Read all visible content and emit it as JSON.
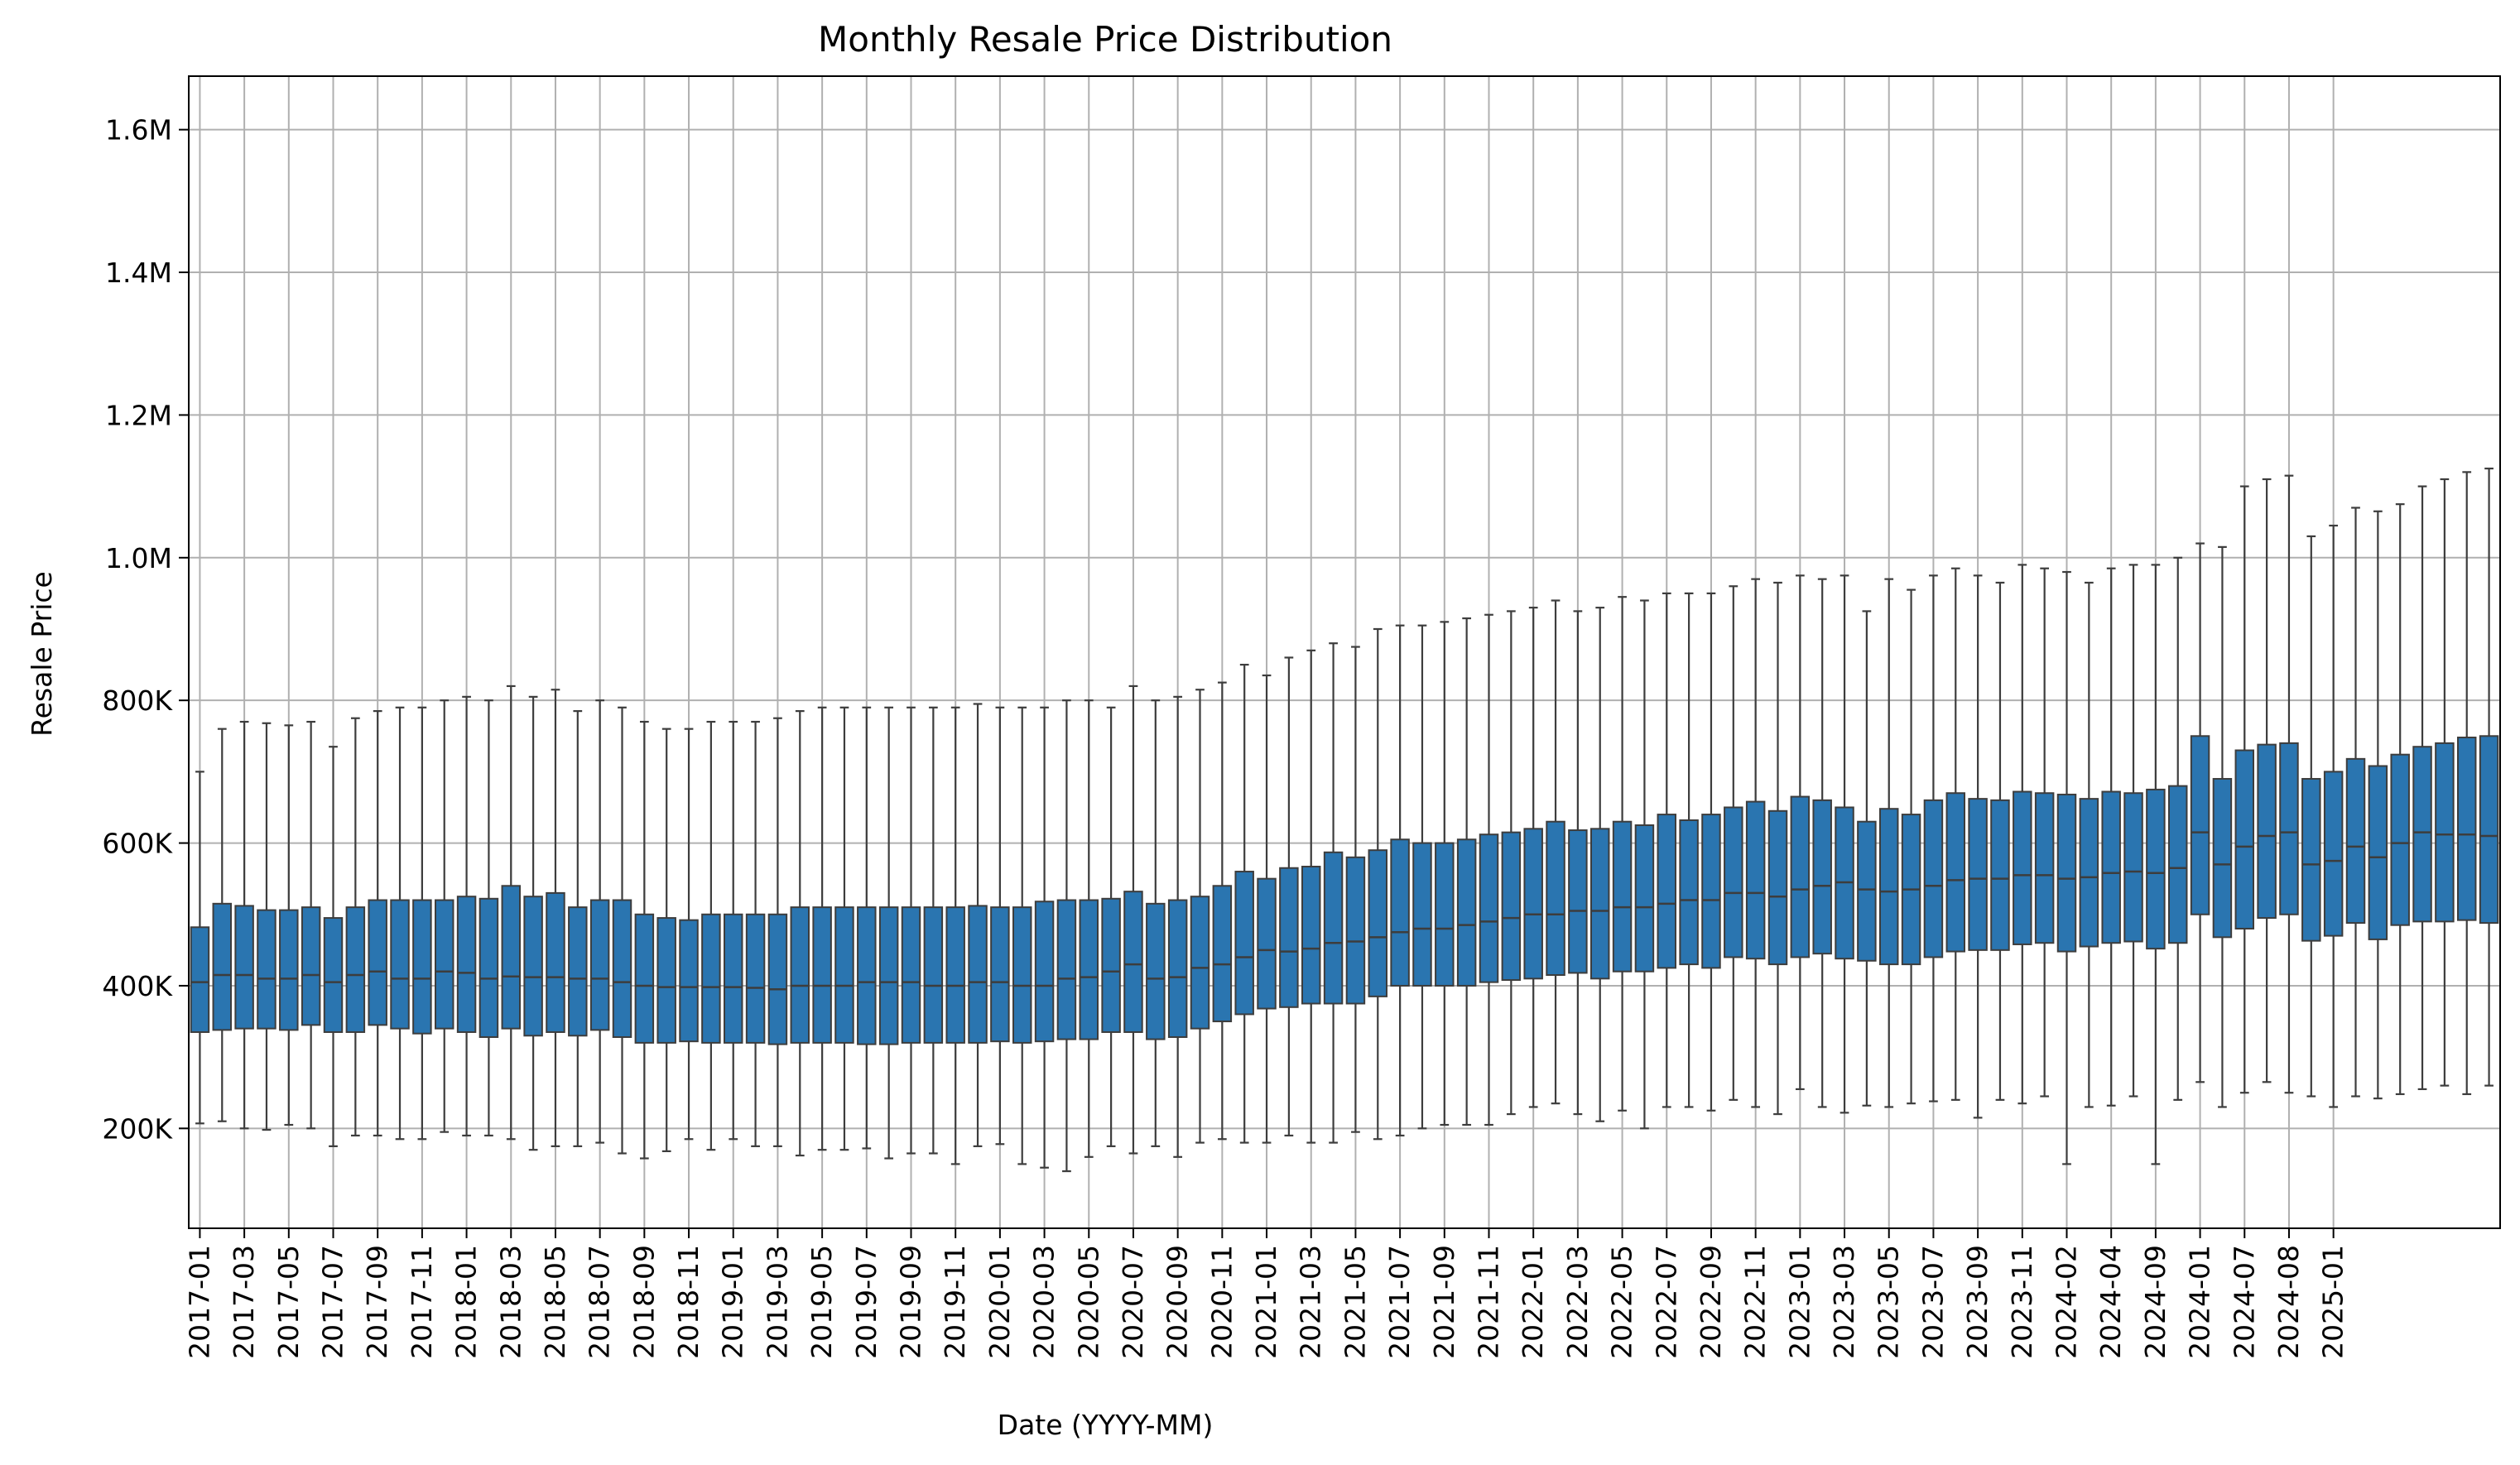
{
  "chart_data": {
    "type": "box",
    "title": "Monthly Resale Price Distribution",
    "xlabel": "Date (YYYY-MM)",
    "ylabel": "Resale Price",
    "ylim": [
      60000,
      1675000
    ],
    "yticks": [
      {
        "value": 200000,
        "label": "200K"
      },
      {
        "value": 400000,
        "label": "400K"
      },
      {
        "value": 600000,
        "label": "600K"
      },
      {
        "value": 800000,
        "label": "800K"
      },
      {
        "value": 1000000,
        "label": "1.0M"
      },
      {
        "value": 1200000,
        "label": "1.2M"
      },
      {
        "value": 1400000,
        "label": "1.4M"
      },
      {
        "value": 1600000,
        "label": "1.6M"
      }
    ],
    "xticks": [
      {
        "index": 0,
        "label": "2017-01"
      },
      {
        "index": 2,
        "label": "2017-03"
      },
      {
        "index": 4,
        "label": "2017-05"
      },
      {
        "index": 6,
        "label": "2017-07"
      },
      {
        "index": 8,
        "label": "2017-09"
      },
      {
        "index": 10,
        "label": "2017-11"
      },
      {
        "index": 12,
        "label": "2018-01"
      },
      {
        "index": 14,
        "label": "2018-03"
      },
      {
        "index": 16,
        "label": "2018-05"
      },
      {
        "index": 18,
        "label": "2018-07"
      },
      {
        "index": 20,
        "label": "2018-09"
      },
      {
        "index": 22,
        "label": "2018-11"
      },
      {
        "index": 24,
        "label": "2019-01"
      },
      {
        "index": 26,
        "label": "2019-03"
      },
      {
        "index": 28,
        "label": "2019-05"
      },
      {
        "index": 30,
        "label": "2019-07"
      },
      {
        "index": 32,
        "label": "2019-09"
      },
      {
        "index": 34,
        "label": "2019-11"
      },
      {
        "index": 36,
        "label": "2020-01"
      },
      {
        "index": 38,
        "label": "2020-03"
      },
      {
        "index": 40,
        "label": "2020-05"
      },
      {
        "index": 42,
        "label": "2020-07"
      },
      {
        "index": 44,
        "label": "2020-09"
      },
      {
        "index": 46,
        "label": "2020-11"
      },
      {
        "index": 48,
        "label": "2021-01"
      },
      {
        "index": 50,
        "label": "2021-03"
      },
      {
        "index": 52,
        "label": "2021-05"
      },
      {
        "index": 54,
        "label": "2021-07"
      },
      {
        "index": 56,
        "label": "2021-09"
      },
      {
        "index": 58,
        "label": "2021-11"
      },
      {
        "index": 60,
        "label": "2022-01"
      },
      {
        "index": 62,
        "label": "2022-03"
      },
      {
        "index": 64,
        "label": "2022-05"
      },
      {
        "index": 66,
        "label": "2022-07"
      },
      {
        "index": 68,
        "label": "2022-09"
      },
      {
        "index": 70,
        "label": "2022-11"
      },
      {
        "index": 72,
        "label": "2023-01"
      },
      {
        "index": 74,
        "label": "2023-03"
      },
      {
        "index": 76,
        "label": "2023-05"
      },
      {
        "index": 78,
        "label": "2023-07"
      },
      {
        "index": 80,
        "label": "2023-09"
      },
      {
        "index": 82,
        "label": "2023-11"
      },
      {
        "index": 84,
        "label": "2024-02"
      },
      {
        "index": 86,
        "label": "2024-04"
      },
      {
        "index": 88,
        "label": "2024-09"
      },
      {
        "index": 90,
        "label": "2024-01"
      },
      {
        "index": 92,
        "label": "2024-07"
      },
      {
        "index": 94,
        "label": "2024-08"
      },
      {
        "index": 96,
        "label": "2025-01"
      }
    ],
    "grid": true,
    "box_color": "#2a75b0",
    "line_color": "#3d3d3d",
    "box_width_fraction": 0.8,
    "series": [
      {
        "q1": 335000,
        "median": 405000,
        "q3": 482000,
        "wlo": 207000,
        "whi": 700000
      },
      {
        "q1": 338000,
        "median": 415000,
        "q3": 515000,
        "wlo": 210000,
        "whi": 760000
      },
      {
        "q1": 340000,
        "median": 415000,
        "q3": 512000,
        "wlo": 200000,
        "whi": 770000
      },
      {
        "q1": 340000,
        "median": 410000,
        "q3": 506000,
        "wlo": 198000,
        "whi": 768000
      },
      {
        "q1": 338000,
        "median": 410000,
        "q3": 506000,
        "wlo": 205000,
        "whi": 765000
      },
      {
        "q1": 345000,
        "median": 415000,
        "q3": 510000,
        "wlo": 200000,
        "whi": 770000
      },
      {
        "q1": 335000,
        "median": 405000,
        "q3": 495000,
        "wlo": 175000,
        "whi": 735000
      },
      {
        "q1": 335000,
        "median": 415000,
        "q3": 510000,
        "wlo": 190000,
        "whi": 775000
      },
      {
        "q1": 345000,
        "median": 420000,
        "q3": 520000,
        "wlo": 190000,
        "whi": 785000
      },
      {
        "q1": 340000,
        "median": 410000,
        "q3": 520000,
        "wlo": 185000,
        "whi": 790000
      },
      {
        "q1": 333000,
        "median": 410000,
        "q3": 520000,
        "wlo": 185000,
        "whi": 790000
      },
      {
        "q1": 340000,
        "median": 420000,
        "q3": 520000,
        "wlo": 195000,
        "whi": 800000
      },
      {
        "q1": 335000,
        "median": 418000,
        "q3": 525000,
        "wlo": 190000,
        "whi": 805000
      },
      {
        "q1": 328000,
        "median": 410000,
        "q3": 522000,
        "wlo": 190000,
        "whi": 800000
      },
      {
        "q1": 340000,
        "median": 413000,
        "q3": 540000,
        "wlo": 185000,
        "whi": 820000
      },
      {
        "q1": 330000,
        "median": 412000,
        "q3": 525000,
        "wlo": 170000,
        "whi": 805000
      },
      {
        "q1": 335000,
        "median": 412000,
        "q3": 530000,
        "wlo": 175000,
        "whi": 815000
      },
      {
        "q1": 330000,
        "median": 410000,
        "q3": 510000,
        "wlo": 175000,
        "whi": 785000
      },
      {
        "q1": 338000,
        "median": 410000,
        "q3": 520000,
        "wlo": 180000,
        "whi": 800000
      },
      {
        "q1": 328000,
        "median": 405000,
        "q3": 520000,
        "wlo": 165000,
        "whi": 790000
      },
      {
        "q1": 320000,
        "median": 400000,
        "q3": 500000,
        "wlo": 158000,
        "whi": 770000
      },
      {
        "q1": 320000,
        "median": 398000,
        "q3": 495000,
        "wlo": 168000,
        "whi": 760000
      },
      {
        "q1": 322000,
        "median": 398000,
        "q3": 492000,
        "wlo": 185000,
        "whi": 760000
      },
      {
        "q1": 320000,
        "median": 398000,
        "q3": 500000,
        "wlo": 170000,
        "whi": 770000
      },
      {
        "q1": 320000,
        "median": 398000,
        "q3": 500000,
        "wlo": 185000,
        "whi": 770000
      },
      {
        "q1": 320000,
        "median": 397000,
        "q3": 500000,
        "wlo": 175000,
        "whi": 770000
      },
      {
        "q1": 318000,
        "median": 395000,
        "q3": 500000,
        "wlo": 175000,
        "whi": 775000
      },
      {
        "q1": 320000,
        "median": 400000,
        "q3": 510000,
        "wlo": 162000,
        "whi": 785000
      },
      {
        "q1": 320000,
        "median": 400000,
        "q3": 510000,
        "wlo": 170000,
        "whi": 790000
      },
      {
        "q1": 320000,
        "median": 400000,
        "q3": 510000,
        "wlo": 170000,
        "whi": 790000
      },
      {
        "q1": 318000,
        "median": 405000,
        "q3": 510000,
        "wlo": 172000,
        "whi": 790000
      },
      {
        "q1": 318000,
        "median": 405000,
        "q3": 510000,
        "wlo": 158000,
        "whi": 790000
      },
      {
        "q1": 320000,
        "median": 405000,
        "q3": 510000,
        "wlo": 165000,
        "whi": 790000
      },
      {
        "q1": 320000,
        "median": 400000,
        "q3": 510000,
        "wlo": 165000,
        "whi": 790000
      },
      {
        "q1": 320000,
        "median": 400000,
        "q3": 510000,
        "wlo": 150000,
        "whi": 790000
      },
      {
        "q1": 320000,
        "median": 405000,
        "q3": 512000,
        "wlo": 175000,
        "whi": 795000
      },
      {
        "q1": 322000,
        "median": 405000,
        "q3": 510000,
        "wlo": 178000,
        "whi": 790000
      },
      {
        "q1": 320000,
        "median": 400000,
        "q3": 510000,
        "wlo": 150000,
        "whi": 790000
      },
      {
        "q1": 322000,
        "median": 400000,
        "q3": 518000,
        "wlo": 145000,
        "whi": 790000
      },
      {
        "q1": 325000,
        "median": 410000,
        "q3": 520000,
        "wlo": 140000,
        "whi": 800000
      },
      {
        "q1": 325000,
        "median": 412000,
        "q3": 520000,
        "wlo": 160000,
        "whi": 800000
      },
      {
        "q1": 335000,
        "median": 420000,
        "q3": 522000,
        "wlo": 175000,
        "whi": 790000
      },
      {
        "q1": 335000,
        "median": 430000,
        "q3": 532000,
        "wlo": 165000,
        "whi": 820000
      },
      {
        "q1": 325000,
        "median": 410000,
        "q3": 515000,
        "wlo": 175000,
        "whi": 800000
      },
      {
        "q1": 328000,
        "median": 412000,
        "q3": 520000,
        "wlo": 160000,
        "whi": 805000
      },
      {
        "q1": 340000,
        "median": 425000,
        "q3": 525000,
        "wlo": 180000,
        "whi": 815000
      },
      {
        "q1": 350000,
        "median": 430000,
        "q3": 540000,
        "wlo": 185000,
        "whi": 825000
      },
      {
        "q1": 360000,
        "median": 440000,
        "q3": 560000,
        "wlo": 180000,
        "whi": 850000
      },
      {
        "q1": 368000,
        "median": 450000,
        "q3": 550000,
        "wlo": 180000,
        "whi": 835000
      },
      {
        "q1": 370000,
        "median": 448000,
        "q3": 565000,
        "wlo": 190000,
        "whi": 860000
      },
      {
        "q1": 375000,
        "median": 452000,
        "q3": 567000,
        "wlo": 180000,
        "whi": 870000
      },
      {
        "q1": 375000,
        "median": 460000,
        "q3": 587000,
        "wlo": 180000,
        "whi": 880000
      },
      {
        "q1": 375000,
        "median": 462000,
        "q3": 580000,
        "wlo": 195000,
        "whi": 875000
      },
      {
        "q1": 385000,
        "median": 468000,
        "q3": 590000,
        "wlo": 185000,
        "whi": 900000
      },
      {
        "q1": 400000,
        "median": 475000,
        "q3": 605000,
        "wlo": 190000,
        "whi": 905000
      },
      {
        "q1": 400000,
        "median": 480000,
        "q3": 600000,
        "wlo": 200000,
        "whi": 905000
      },
      {
        "q1": 400000,
        "median": 480000,
        "q3": 600000,
        "wlo": 205000,
        "whi": 910000
      },
      {
        "q1": 400000,
        "median": 485000,
        "q3": 605000,
        "wlo": 205000,
        "whi": 915000
      },
      {
        "q1": 405000,
        "median": 490000,
        "q3": 612000,
        "wlo": 205000,
        "whi": 920000
      },
      {
        "q1": 408000,
        "median": 495000,
        "q3": 615000,
        "wlo": 220000,
        "whi": 925000
      },
      {
        "q1": 410000,
        "median": 500000,
        "q3": 620000,
        "wlo": 230000,
        "whi": 930000
      },
      {
        "q1": 415000,
        "median": 500000,
        "q3": 630000,
        "wlo": 235000,
        "whi": 940000
      },
      {
        "q1": 418000,
        "median": 505000,
        "q3": 618000,
        "wlo": 220000,
        "whi": 925000
      },
      {
        "q1": 410000,
        "median": 505000,
        "q3": 620000,
        "wlo": 210000,
        "whi": 930000
      },
      {
        "q1": 420000,
        "median": 510000,
        "q3": 630000,
        "wlo": 225000,
        "whi": 945000
      },
      {
        "q1": 420000,
        "median": 510000,
        "q3": 625000,
        "wlo": 200000,
        "whi": 940000
      },
      {
        "q1": 425000,
        "median": 515000,
        "q3": 640000,
        "wlo": 230000,
        "whi": 950000
      },
      {
        "q1": 430000,
        "median": 520000,
        "q3": 632000,
        "wlo": 230000,
        "whi": 950000
      },
      {
        "q1": 425000,
        "median": 520000,
        "q3": 640000,
        "wlo": 225000,
        "whi": 950000
      },
      {
        "q1": 440000,
        "median": 530000,
        "q3": 650000,
        "wlo": 240000,
        "whi": 960000
      },
      {
        "q1": 438000,
        "median": 530000,
        "q3": 658000,
        "wlo": 230000,
        "whi": 970000
      },
      {
        "q1": 430000,
        "median": 525000,
        "q3": 645000,
        "wlo": 220000,
        "whi": 965000
      },
      {
        "q1": 440000,
        "median": 535000,
        "q3": 665000,
        "wlo": 255000,
        "whi": 975000
      },
      {
        "q1": 445000,
        "median": 540000,
        "q3": 660000,
        "wlo": 230000,
        "whi": 970000
      },
      {
        "q1": 438000,
        "median": 545000,
        "q3": 650000,
        "wlo": 222000,
        "whi": 975000
      },
      {
        "q1": 435000,
        "median": 535000,
        "q3": 630000,
        "wlo": 232000,
        "whi": 925000
      },
      {
        "q1": 430000,
        "median": 532000,
        "q3": 648000,
        "wlo": 230000,
        "whi": 970000
      },
      {
        "q1": 430000,
        "median": 535000,
        "q3": 640000,
        "wlo": 235000,
        "whi": 955000
      },
      {
        "q1": 440000,
        "median": 540000,
        "q3": 660000,
        "wlo": 238000,
        "whi": 975000
      },
      {
        "q1": 448000,
        "median": 548000,
        "q3": 670000,
        "wlo": 240000,
        "whi": 985000
      },
      {
        "q1": 450000,
        "median": 550000,
        "q3": 662000,
        "wlo": 215000,
        "whi": 975000
      },
      {
        "q1": 450000,
        "median": 550000,
        "q3": 660000,
        "wlo": 240000,
        "whi": 965000
      },
      {
        "q1": 458000,
        "median": 555000,
        "q3": 672000,
        "wlo": 235000,
        "whi": 990000
      },
      {
        "q1": 460000,
        "median": 555000,
        "q3": 670000,
        "wlo": 245000,
        "whi": 985000
      },
      {
        "q1": 448000,
        "median": 550000,
        "q3": 668000,
        "wlo": 150000,
        "whi": 980000
      },
      {
        "q1": 455000,
        "median": 552000,
        "q3": 662000,
        "wlo": 230000,
        "whi": 965000
      },
      {
        "q1": 460000,
        "median": 558000,
        "q3": 672000,
        "wlo": 232000,
        "whi": 985000
      },
      {
        "q1": 462000,
        "median": 560000,
        "q3": 670000,
        "wlo": 245000,
        "whi": 990000
      },
      {
        "q1": 452000,
        "median": 558000,
        "q3": 675000,
        "wlo": 150000,
        "whi": 990000
      },
      {
        "q1": 460000,
        "median": 565000,
        "q3": 680000,
        "wlo": 240000,
        "whi": 1000000
      },
      {
        "q1": 500000,
        "median": 615000,
        "q3": 750000,
        "wlo": 265000,
        "whi": 1020000
      },
      {
        "q1": 468000,
        "median": 570000,
        "q3": 690000,
        "wlo": 230000,
        "whi": 1015000
      },
      {
        "q1": 480000,
        "median": 595000,
        "q3": 730000,
        "wlo": 250000,
        "whi": 1100000
      },
      {
        "q1": 495000,
        "median": 610000,
        "q3": 738000,
        "wlo": 265000,
        "whi": 1110000
      },
      {
        "q1": 500000,
        "median": 615000,
        "q3": 740000,
        "wlo": 250000,
        "whi": 1115000
      },
      {
        "q1": 463000,
        "median": 570000,
        "q3": 690000,
        "wlo": 245000,
        "whi": 1030000
      },
      {
        "q1": 470000,
        "median": 575000,
        "q3": 700000,
        "wlo": 230000,
        "whi": 1045000
      },
      {
        "q1": 488000,
        "median": 595000,
        "q3": 718000,
        "wlo": 245000,
        "whi": 1070000
      },
      {
        "q1": 465000,
        "median": 580000,
        "q3": 708000,
        "wlo": 242000,
        "whi": 1065000
      },
      {
        "q1": 485000,
        "median": 600000,
        "q3": 724000,
        "wlo": 248000,
        "whi": 1075000
      },
      {
        "q1": 490000,
        "median": 615000,
        "q3": 735000,
        "wlo": 255000,
        "whi": 1100000
      },
      {
        "q1": 490000,
        "median": 612000,
        "q3": 740000,
        "wlo": 260000,
        "whi": 1110000
      },
      {
        "q1": 492000,
        "median": 612000,
        "q3": 748000,
        "wlo": 248000,
        "whi": 1120000
      },
      {
        "q1": 488000,
        "median": 610000,
        "q3": 750000,
        "wlo": 260000,
        "whi": 1125000
      }
    ]
  }
}
